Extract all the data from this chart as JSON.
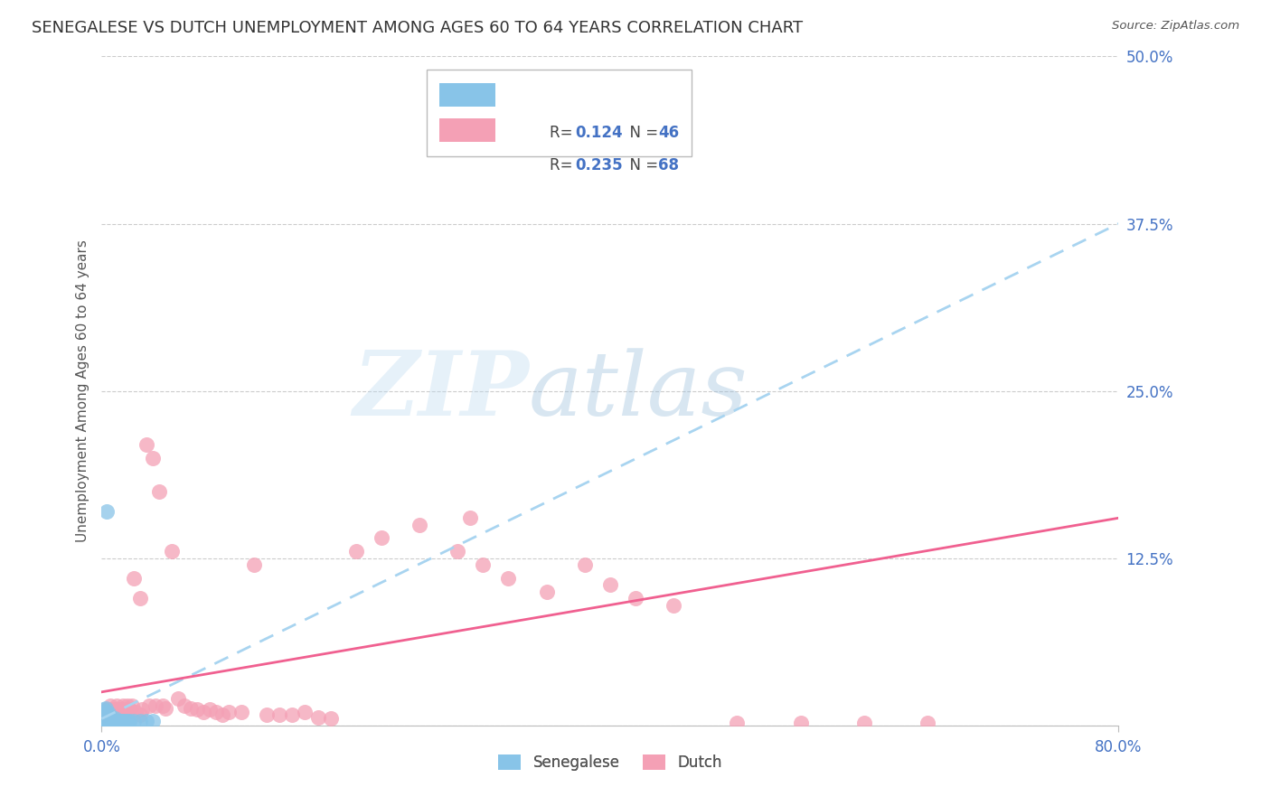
{
  "title": "SENEGALESE VS DUTCH UNEMPLOYMENT AMONG AGES 60 TO 64 YEARS CORRELATION CHART",
  "source": "Source: ZipAtlas.com",
  "ylabel": "Unemployment Among Ages 60 to 64 years",
  "xlim": [
    0.0,
    0.8
  ],
  "ylim": [
    0.0,
    0.5
  ],
  "yticks": [
    0.0,
    0.125,
    0.25,
    0.375,
    0.5
  ],
  "ytick_labels": [
    "",
    "12.5%",
    "25.0%",
    "37.5%",
    "50.0%"
  ],
  "xtick_positions": [
    0.0,
    0.8
  ],
  "xtick_labels": [
    "0.0%",
    "80.0%"
  ],
  "watermark_zip": "ZIP",
  "watermark_atlas": "atlas",
  "senegalese_color": "#88C4E8",
  "dutch_color": "#F4A0B5",
  "senegalese_trend_color": "#A8D4F0",
  "dutch_trend_color": "#F06090",
  "background_color": "#ffffff",
  "grid_color": "#cccccc",
  "title_fontsize": 13,
  "axis_label_fontsize": 11,
  "tick_fontsize": 12,
  "tick_label_color": "#4472C4",
  "ylabel_color": "#555555",
  "senegalese_x": [
    0.001,
    0.001,
    0.001,
    0.001,
    0.002,
    0.002,
    0.002,
    0.002,
    0.002,
    0.003,
    0.003,
    0.003,
    0.003,
    0.003,
    0.003,
    0.004,
    0.004,
    0.004,
    0.004,
    0.005,
    0.005,
    0.005,
    0.005,
    0.006,
    0.006,
    0.007,
    0.007,
    0.008,
    0.008,
    0.009,
    0.01,
    0.01,
    0.011,
    0.012,
    0.013,
    0.014,
    0.015,
    0.016,
    0.018,
    0.02,
    0.022,
    0.025,
    0.03,
    0.035,
    0.04,
    0.004
  ],
  "senegalese_y": [
    0.003,
    0.005,
    0.007,
    0.01,
    0.003,
    0.005,
    0.007,
    0.009,
    0.012,
    0.003,
    0.005,
    0.007,
    0.009,
    0.011,
    0.013,
    0.003,
    0.005,
    0.007,
    0.009,
    0.003,
    0.005,
    0.007,
    0.009,
    0.003,
    0.005,
    0.003,
    0.005,
    0.003,
    0.005,
    0.003,
    0.003,
    0.005,
    0.003,
    0.003,
    0.003,
    0.003,
    0.003,
    0.003,
    0.003,
    0.003,
    0.003,
    0.003,
    0.003,
    0.003,
    0.003,
    0.16
  ],
  "dutch_x": [
    0.002,
    0.003,
    0.004,
    0.005,
    0.006,
    0.007,
    0.008,
    0.009,
    0.01,
    0.011,
    0.012,
    0.013,
    0.014,
    0.015,
    0.016,
    0.017,
    0.018,
    0.019,
    0.02,
    0.022,
    0.024,
    0.025,
    0.027,
    0.03,
    0.032,
    0.035,
    0.037,
    0.04,
    0.042,
    0.045,
    0.048,
    0.05,
    0.055,
    0.06,
    0.065,
    0.07,
    0.075,
    0.08,
    0.085,
    0.09,
    0.095,
    0.1,
    0.11,
    0.12,
    0.13,
    0.14,
    0.15,
    0.16,
    0.17,
    0.18,
    0.2,
    0.22,
    0.25,
    0.28,
    0.3,
    0.32,
    0.35,
    0.38,
    0.4,
    0.42,
    0.45,
    0.5,
    0.55,
    0.6,
    0.65,
    0.02,
    0.03,
    0.29
  ],
  "dutch_y": [
    0.008,
    0.01,
    0.012,
    0.01,
    0.012,
    0.015,
    0.01,
    0.012,
    0.01,
    0.012,
    0.015,
    0.012,
    0.01,
    0.012,
    0.01,
    0.015,
    0.012,
    0.01,
    0.015,
    0.012,
    0.015,
    0.11,
    0.01,
    0.095,
    0.012,
    0.21,
    0.015,
    0.2,
    0.015,
    0.175,
    0.015,
    0.013,
    0.13,
    0.02,
    0.015,
    0.013,
    0.012,
    0.01,
    0.012,
    0.01,
    0.008,
    0.01,
    0.01,
    0.12,
    0.008,
    0.008,
    0.008,
    0.01,
    0.006,
    0.005,
    0.13,
    0.14,
    0.15,
    0.13,
    0.12,
    0.11,
    0.1,
    0.12,
    0.105,
    0.095,
    0.09,
    0.002,
    0.002,
    0.002,
    0.002,
    0.01,
    0.008,
    0.155
  ],
  "sen_trend_x0": 0.0,
  "sen_trend_y0": 0.005,
  "sen_trend_x1": 0.8,
  "sen_trend_y1": 0.375,
  "dutch_trend_x0": 0.0,
  "dutch_trend_y0": 0.025,
  "dutch_trend_x1": 0.8,
  "dutch_trend_y1": 0.155
}
